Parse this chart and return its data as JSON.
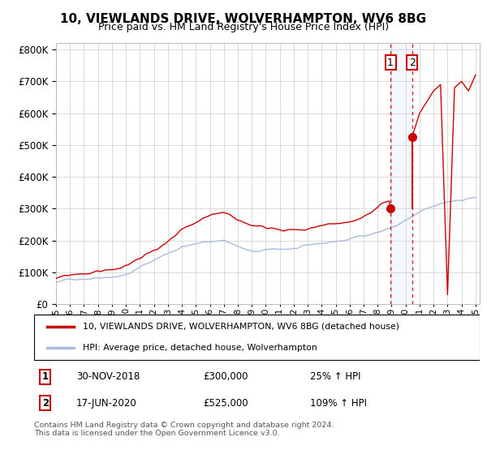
{
  "title": "10, VIEWLANDS DRIVE, WOLVERHAMPTON, WV6 8BG",
  "subtitle": "Price paid vs. HM Land Registry's House Price Index (HPI)",
  "legend_label_red": "10, VIEWLANDS DRIVE, WOLVERHAMPTON, WV6 8BG (detached house)",
  "legend_label_blue": "HPI: Average price, detached house, Wolverhampton",
  "table": [
    {
      "num": "1",
      "date": "30-NOV-2018",
      "price": "£300,000",
      "change": "25% ↑ HPI"
    },
    {
      "num": "2",
      "date": "17-JUN-2020",
      "price": "£525,000",
      "change": "109% ↑ HPI"
    }
  ],
  "footer": "Contains HM Land Registry data © Crown copyright and database right 2024.\nThis data is licensed under the Open Government Licence v3.0.",
  "sale1_year": 2018.92,
  "sale1_price": 300000,
  "sale2_year": 2020.46,
  "sale2_price": 525000,
  "ylim_max": 820000,
  "background_color": "#ffffff",
  "grid_color": "#cccccc",
  "red_color": "#cc0000",
  "blue_color": "#aabbdd",
  "highlight_color": "#ddeeff",
  "title_fontsize": 11,
  "subtitle_fontsize": 9
}
